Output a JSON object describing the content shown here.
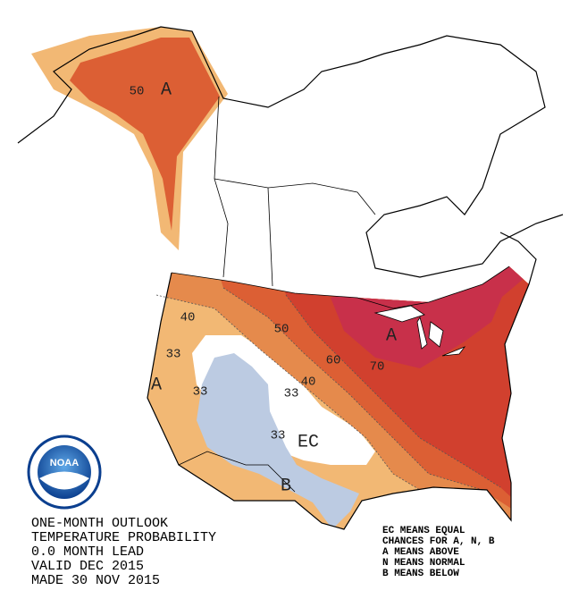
{
  "logo": "NOAA",
  "map_labels": [
    "50",
    "A",
    "40",
    "33",
    "A",
    "33",
    "50",
    "60",
    "40",
    "33",
    "70",
    "A",
    "33",
    "EC",
    "B"
  ],
  "title_lines": [
    "ONE-MONTH OUTLOOK",
    "TEMPERATURE PROBABILITY",
    "0.0 MONTH LEAD",
    "VALID DEC 2015",
    "MADE 30 NOV 2015"
  ],
  "legend_lines": [
    "EC MEANS EQUAL",
    "CHANCES FOR A, N, B",
    "A MEANS ABOVE",
    "N MEANS NORMAL",
    "B MEANS BELOW"
  ]
}
